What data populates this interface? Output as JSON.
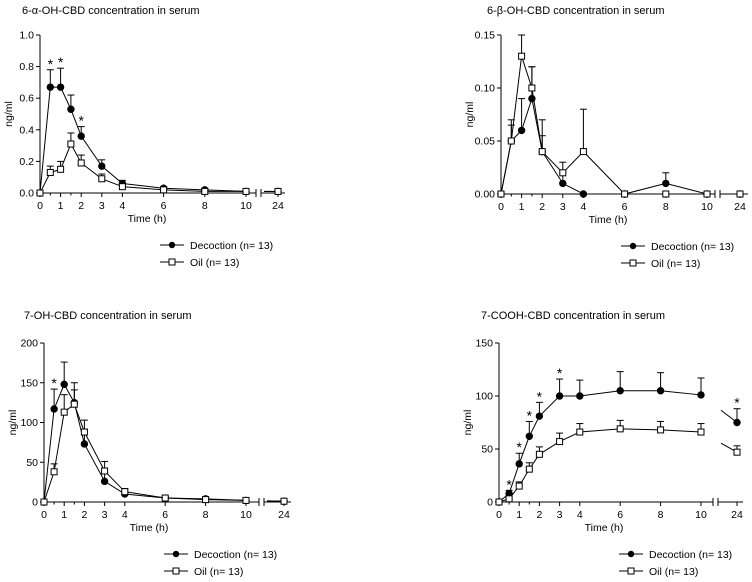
{
  "chart_data": [
    {
      "type": "line",
      "title": "6-α-OH-CBD concentration in serum",
      "xlabel": "Time (h)",
      "ylabel": "ng/ml",
      "ylim": [
        0,
        1.0
      ],
      "yticks": [
        "0.0",
        "0.2",
        "0.4",
        "0.6",
        "0.8",
        "1.0"
      ],
      "xticks": [
        "0",
        "1",
        "2",
        "3",
        "4",
        "6",
        "8",
        "10",
        "24"
      ],
      "axis_break": "between 10 and 24",
      "legend_position": "bottom",
      "significance_marks": [
        {
          "x": 0.5,
          "label": "*"
        },
        {
          "x": 1,
          "label": "*"
        },
        {
          "x": 2,
          "label": "*"
        }
      ],
      "series": [
        {
          "name": "Decoction (n= 13)",
          "marker": "filled-circle",
          "x": [
            0,
            0.5,
            1,
            1.5,
            2,
            3,
            4,
            6,
            8,
            10,
            24
          ],
          "y": [
            0,
            0.67,
            0.67,
            0.53,
            0.36,
            0.17,
            0.06,
            0.03,
            0.02,
            0.01,
            0.01
          ],
          "err": [
            0,
            0.11,
            0.12,
            0.09,
            0.06,
            0.04,
            0.02,
            0.01,
            0.01,
            0.005,
            0.005
          ]
        },
        {
          "name": "Oil (n= 13)",
          "marker": "open-square",
          "x": [
            0,
            0.5,
            1,
            1.5,
            2,
            3,
            4,
            6,
            8,
            10,
            24
          ],
          "y": [
            0,
            0.13,
            0.15,
            0.31,
            0.19,
            0.09,
            0.04,
            0.02,
            0.01,
            0.01,
            0.01
          ],
          "err": [
            0,
            0.04,
            0.05,
            0.07,
            0.05,
            0.03,
            0.015,
            0.008,
            0.005,
            0.004,
            0.004
          ]
        }
      ]
    },
    {
      "type": "line",
      "title": "6-β-OH-CBD concentration in serum",
      "xlabel": "Time (h)",
      "ylabel": "ng/ml",
      "ylim": [
        0,
        0.15
      ],
      "yticks": [
        "0.00",
        "0.05",
        "0.10",
        "0.15"
      ],
      "xticks": [
        "0",
        "1",
        "2",
        "3",
        "4",
        "6",
        "8",
        "10",
        "24"
      ],
      "axis_break": "between 10 and 24",
      "legend_position": "bottom",
      "significance_marks": [],
      "series": [
        {
          "name": "Decoction (n= 13)",
          "marker": "filled-circle",
          "x": [
            0,
            0.5,
            1,
            1.5,
            2,
            3,
            4,
            6,
            8,
            10,
            24
          ],
          "y": [
            0,
            0.05,
            0.06,
            0.09,
            0.04,
            0.01,
            0,
            0,
            0.01,
            0,
            0
          ],
          "err": [
            0,
            0.02,
            0.03,
            0.03,
            0.015,
            0.01,
            0,
            0,
            0.01,
            0,
            0
          ]
        },
        {
          "name": "Oil (n= 13)",
          "marker": "open-square",
          "x": [
            0,
            0.5,
            1,
            1.5,
            2,
            3,
            4,
            6,
            8,
            10,
            24
          ],
          "y": [
            0,
            0.05,
            0.13,
            0.1,
            0.04,
            0.02,
            0.04,
            0,
            0,
            0,
            0
          ],
          "err": [
            0,
            0.015,
            0.02,
            0.02,
            0.03,
            0.01,
            0.04,
            0,
            0,
            0,
            0
          ]
        }
      ]
    },
    {
      "type": "line",
      "title": "7-OH-CBD concentration in serum",
      "xlabel": "Time (h)",
      "ylabel": "ng/ml",
      "ylim": [
        0,
        200
      ],
      "yticks": [
        "0",
        "50",
        "100",
        "150",
        "200"
      ],
      "xticks": [
        "0",
        "1",
        "2",
        "3",
        "4",
        "6",
        "8",
        "10",
        "24"
      ],
      "axis_break": "between 10 and 24",
      "legend_position": "bottom",
      "significance_marks": [
        {
          "x": 0.5,
          "label": "*"
        }
      ],
      "series": [
        {
          "name": "Decoction (n= 13)",
          "marker": "filled-circle",
          "x": [
            0,
            0.5,
            1,
            1.5,
            2,
            3,
            4,
            6,
            8,
            10,
            24
          ],
          "y": [
            0,
            117,
            148,
            125,
            73,
            26,
            10,
            5,
            4,
            2,
            1
          ],
          "err": [
            0,
            25,
            28,
            25,
            18,
            10,
            4,
            2,
            2,
            1,
            0.5
          ]
        },
        {
          "name": "Oil (n= 13)",
          "marker": "open-square",
          "x": [
            0,
            0.5,
            1,
            1.5,
            2,
            3,
            4,
            6,
            8,
            10,
            24
          ],
          "y": [
            0,
            38,
            113,
            123,
            88,
            39,
            13,
            5,
            3,
            2,
            1
          ],
          "err": [
            0,
            10,
            22,
            18,
            15,
            12,
            4,
            2,
            1,
            1,
            0.5
          ]
        }
      ]
    },
    {
      "type": "line",
      "title": "7-COOH-CBD concentration in serum",
      "xlabel": "Time (h)",
      "ylabel": "ng/ml",
      "ylim": [
        0,
        150
      ],
      "yticks": [
        "0",
        "50",
        "100",
        "150"
      ],
      "xticks": [
        "0",
        "1",
        "2",
        "3",
        "4",
        "6",
        "8",
        "10",
        "24"
      ],
      "axis_break": "between 10 and 24",
      "legend_position": "bottom",
      "significance_marks": [
        {
          "x": 0.5,
          "label": "*"
        },
        {
          "x": 1,
          "label": "*"
        },
        {
          "x": 1.5,
          "label": "*"
        },
        {
          "x": 2,
          "label": "*"
        },
        {
          "x": 3,
          "label": "*"
        },
        {
          "x": 24,
          "label": "*"
        }
      ],
      "series": [
        {
          "name": "Decoction (n= 13)",
          "marker": "filled-circle",
          "x": [
            0,
            0.5,
            1,
            1.5,
            2,
            3,
            4,
            6,
            8,
            10,
            24
          ],
          "y": [
            0,
            8,
            36,
            62,
            81,
            100,
            100,
            105,
            105,
            101,
            75
          ],
          "err": [
            0,
            3,
            10,
            14,
            13,
            16,
            15,
            18,
            17,
            16,
            13
          ]
        },
        {
          "name": "Oil (n= 13)",
          "marker": "open-square",
          "x": [
            0,
            0.5,
            1,
            1.5,
            2,
            3,
            4,
            6,
            8,
            10,
            24
          ],
          "y": [
            0,
            3,
            15,
            31,
            45,
            57,
            66,
            69,
            68,
            66,
            47
          ],
          "err": [
            0,
            1.5,
            4,
            6,
            7,
            8,
            8,
            8,
            8,
            8,
            6
          ]
        }
      ]
    }
  ]
}
